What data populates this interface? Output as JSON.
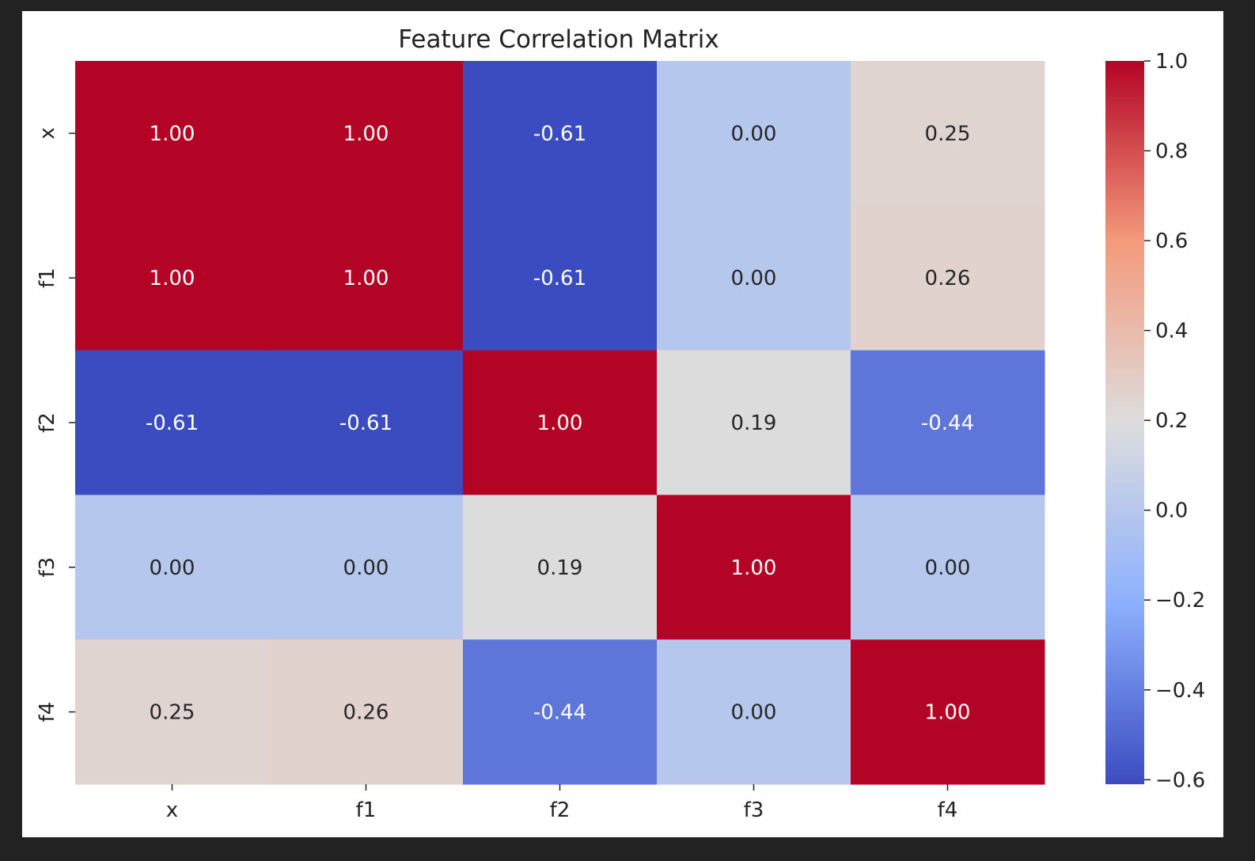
{
  "chart_data": {
    "type": "heatmap",
    "title": "Feature Correlation Matrix",
    "xlabel": "",
    "ylabel": "",
    "x_labels": [
      "x",
      "f1",
      "f2",
      "f3",
      "f4"
    ],
    "y_labels": [
      "x",
      "f1",
      "f2",
      "f3",
      "f4"
    ],
    "values": [
      [
        1.0,
        1.0,
        -0.61,
        0.0,
        0.25
      ],
      [
        1.0,
        1.0,
        -0.61,
        0.0,
        0.26
      ],
      [
        -0.61,
        -0.61,
        1.0,
        0.19,
        -0.44
      ],
      [
        0.0,
        0.0,
        0.19,
        1.0,
        0.0
      ],
      [
        0.25,
        0.26,
        -0.44,
        0.0,
        1.0
      ]
    ],
    "cell_labels": [
      [
        "1.00",
        "1.00",
        "-0.61",
        "0.00",
        "0.25"
      ],
      [
        "1.00",
        "1.00",
        "-0.61",
        "0.00",
        "0.26"
      ],
      [
        "-0.61",
        "-0.61",
        "1.00",
        "0.19",
        "-0.44"
      ],
      [
        "0.00",
        "0.00",
        "0.19",
        "1.00",
        "0.00"
      ],
      [
        "0.25",
        "0.26",
        "-0.44",
        "0.00",
        "1.00"
      ]
    ],
    "colormap": "coolwarm",
    "vmin": -0.61,
    "vmax": 1.0,
    "colorbar": {
      "ticks": [
        1.0,
        0.8,
        0.6,
        0.4,
        0.2,
        0.0,
        -0.2,
        -0.4,
        -0.6
      ],
      "tick_labels": [
        "1.0",
        "0.8",
        "0.6",
        "0.4",
        "0.2",
        "0.0",
        "−0.2",
        "−0.4",
        "−0.6"
      ],
      "placement": "right"
    },
    "grid": false
  }
}
